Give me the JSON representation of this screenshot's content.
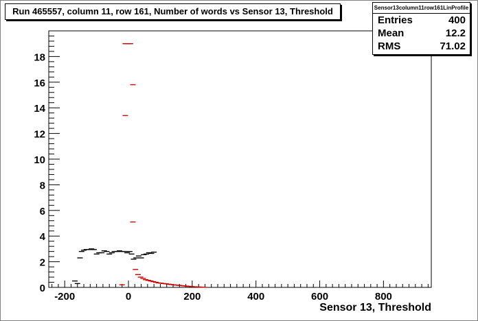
{
  "title": "Run 465557, column 11, row 161, Number of words vs Sensor 13, Threshold",
  "stats": {
    "name": "Sensor13column11row161LinProfile",
    "rows": [
      {
        "label": "Entries",
        "value": "400"
      },
      {
        "label": "Mean",
        "value": "12.2"
      },
      {
        "label": "RMS",
        "value": "71.02"
      }
    ]
  },
  "chart_data": {
    "type": "scatter",
    "title": "Run 465557, column 11, row 161, Number of words vs Sensor 13, Threshold",
    "xlabel": "Sensor 13, Threshold",
    "ylabel": "",
    "xlim": [
      -250,
      950
    ],
    "ylim": [
      0,
      20
    ],
    "x_ticks": [
      -200,
      0,
      200,
      400,
      600,
      800
    ],
    "y_ticks": [
      0,
      2,
      4,
      6,
      8,
      10,
      12,
      14,
      16,
      18
    ],
    "colors": {
      "black_series": "#000000",
      "red_series": "#cc0000"
    },
    "series": [
      {
        "color": "black",
        "points": [
          {
            "x": -168,
            "y": 0.5
          },
          {
            "x": -160,
            "y": 0.3
          },
          {
            "x": -152,
            "y": 2.3
          },
          {
            "x": -147,
            "y": 2.8
          },
          {
            "x": -140,
            "y": 2.9
          },
          {
            "x": -132,
            "y": 2.95
          },
          {
            "x": -124,
            "y": 2.95
          },
          {
            "x": -116,
            "y": 3.0
          },
          {
            "x": -108,
            "y": 2.95
          },
          {
            "x": -100,
            "y": 2.6
          },
          {
            "x": -92,
            "y": 2.7
          },
          {
            "x": -84,
            "y": 2.7
          },
          {
            "x": -76,
            "y": 2.85
          },
          {
            "x": -68,
            "y": 2.8
          },
          {
            "x": -60,
            "y": 2.6
          },
          {
            "x": -52,
            "y": 2.7
          },
          {
            "x": -44,
            "y": 2.8
          },
          {
            "x": -36,
            "y": 2.8
          },
          {
            "x": -28,
            "y": 2.85
          },
          {
            "x": -20,
            "y": 2.8
          },
          {
            "x": -12,
            "y": 2.8
          },
          {
            "x": -4,
            "y": 2.7
          },
          {
            "x": 4,
            "y": 2.8
          },
          {
            "x": 10,
            "y": 2.6
          },
          {
            "x": 16,
            "y": 2.2
          },
          {
            "x": 24,
            "y": 2.3
          },
          {
            "x": 32,
            "y": 2.45
          },
          {
            "x": 40,
            "y": 2.3
          },
          {
            "x": 48,
            "y": 2.55
          },
          {
            "x": 56,
            "y": 2.6
          },
          {
            "x": 64,
            "y": 2.7
          },
          {
            "x": 72,
            "y": 2.65
          },
          {
            "x": 80,
            "y": 2.75
          }
        ]
      },
      {
        "color": "red",
        "points": [
          {
            "x": -20,
            "y": 0.2
          },
          {
            "x": -10,
            "y": 13.4
          },
          {
            "x": -10,
            "y": 19.0
          },
          {
            "x": -2,
            "y": 19.0
          },
          {
            "x": 6,
            "y": 19.0
          },
          {
            "x": 14,
            "y": 15.8
          },
          {
            "x": 14,
            "y": 5.1
          },
          {
            "x": 22,
            "y": 1.4
          },
          {
            "x": 30,
            "y": 1.0
          },
          {
            "x": 38,
            "y": 0.8
          },
          {
            "x": 46,
            "y": 0.7
          },
          {
            "x": 54,
            "y": 0.6
          },
          {
            "x": 62,
            "y": 0.55
          },
          {
            "x": 70,
            "y": 0.5
          },
          {
            "x": 78,
            "y": 0.45
          },
          {
            "x": 86,
            "y": 0.4
          },
          {
            "x": 94,
            "y": 0.35
          },
          {
            "x": 102,
            "y": 0.33
          },
          {
            "x": 110,
            "y": 0.3
          },
          {
            "x": 118,
            "y": 0.28
          },
          {
            "x": 126,
            "y": 0.25
          },
          {
            "x": 134,
            "y": 0.22
          },
          {
            "x": 142,
            "y": 0.2
          },
          {
            "x": 150,
            "y": 0.18
          },
          {
            "x": 158,
            "y": 0.16
          },
          {
            "x": 166,
            "y": 0.14
          },
          {
            "x": 174,
            "y": 0.12
          },
          {
            "x": 182,
            "y": 0.1
          },
          {
            "x": 190,
            "y": 0.08
          },
          {
            "x": 198,
            "y": 0.06
          },
          {
            "x": 206,
            "y": 0.05
          },
          {
            "x": 214,
            "y": 0.04
          },
          {
            "x": 222,
            "y": 0.03
          },
          {
            "x": 230,
            "y": 0.02
          },
          {
            "x": 238,
            "y": 0.01
          }
        ]
      }
    ]
  }
}
